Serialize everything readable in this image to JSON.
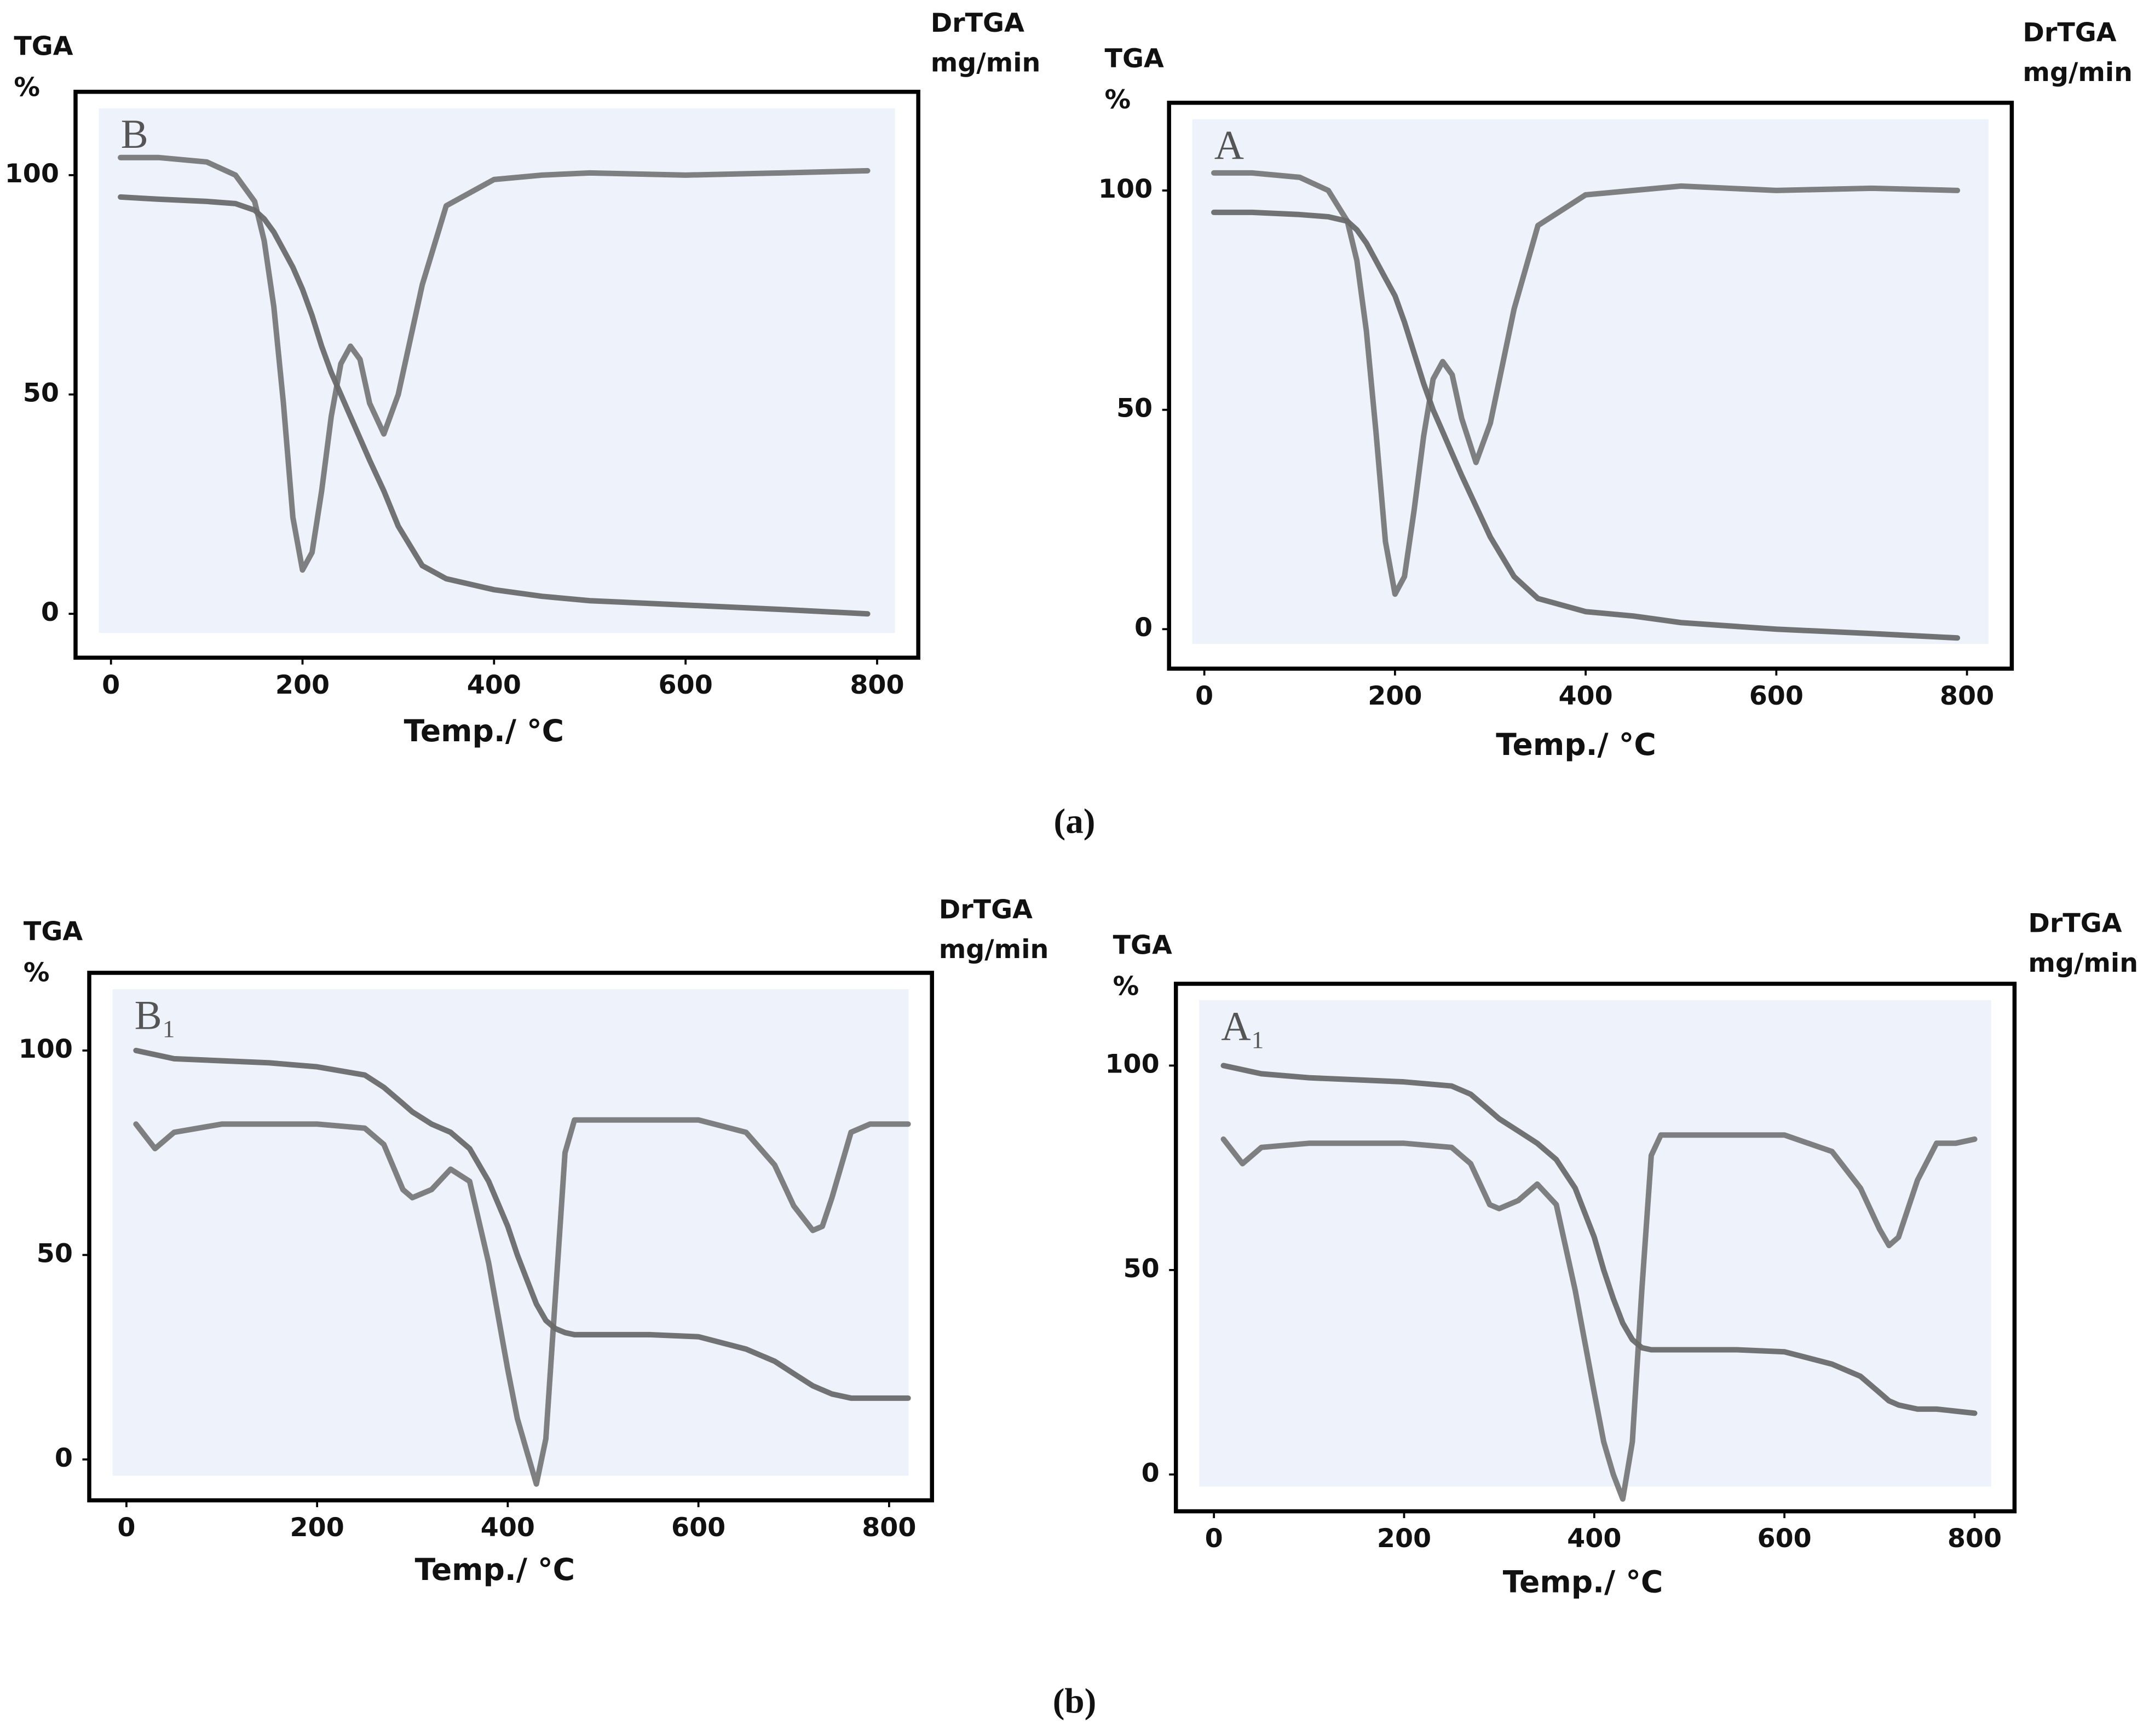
{
  "captions": [
    "(a)",
    "(b)"
  ],
  "chart_data": [
    {
      "type": "line",
      "panel_label": "B",
      "ylabel": [
        "TGA",
        "%"
      ],
      "y2label": [
        "DrTGA",
        "mg/min"
      ],
      "xlabel": "Temp./ °C",
      "xlim": [
        -37,
        843
      ],
      "ylim": [
        -10,
        119
      ],
      "xticks": [
        0,
        200,
        400,
        600,
        800
      ],
      "yticks": [
        0,
        50,
        100
      ],
      "grid": false,
      "x": [
        10,
        50,
        100,
        130,
        150,
        160,
        170,
        180,
        190,
        200,
        210,
        220,
        230,
        240,
        250,
        260,
        270,
        285,
        300,
        325,
        350,
        400,
        450,
        500,
        600,
        700,
        790
      ],
      "series": [
        {
          "color": "#5a5a5a",
          "values": [
            95,
            94.5,
            94,
            93.5,
            92,
            90,
            87,
            83,
            79,
            74,
            68,
            61,
            55,
            50,
            45,
            40,
            35,
            28,
            20,
            11,
            8,
            5.5,
            4,
            3,
            2,
            1,
            0
          ]
        },
        {
          "color": "#6a6a6a",
          "values": [
            104,
            104,
            103,
            100,
            94,
            85,
            70,
            48,
            22,
            10,
            14,
            28,
            45,
            57,
            61,
            58,
            48,
            41,
            50,
            75,
            93,
            99,
            100,
            100.5,
            100,
            100.5,
            101
          ]
        }
      ]
    },
    {
      "type": "line",
      "panel_label": "A",
      "ylabel": [
        "TGA",
        "%"
      ],
      "y2label": [
        "DrTGA",
        "mg/min"
      ],
      "xlabel": "Temp./ °C",
      "xlim": [
        -37,
        847
      ],
      "ylim": [
        -9,
        120
      ],
      "xticks": [
        0,
        200,
        400,
        600,
        800
      ],
      "yticks": [
        0,
        50,
        100
      ],
      "grid": false,
      "x": [
        10,
        50,
        100,
        130,
        150,
        160,
        170,
        180,
        190,
        200,
        210,
        220,
        230,
        240,
        250,
        260,
        270,
        285,
        300,
        325,
        350,
        400,
        450,
        500,
        600,
        700,
        790
      ],
      "series": [
        {
          "color": "#5a5a5a",
          "values": [
            95,
            95,
            94.5,
            94,
            93,
            91,
            88,
            84,
            80,
            76,
            70,
            63,
            56,
            50,
            45,
            40,
            35,
            28,
            21,
            12,
            7,
            4,
            3,
            1.5,
            0,
            -1,
            -2
          ]
        },
        {
          "color": "#6a6a6a",
          "values": [
            104,
            104,
            103,
            100,
            93,
            84,
            68,
            45,
            20,
            8,
            12,
            27,
            44,
            57,
            61,
            58,
            48,
            38,
            47,
            73,
            92,
            99,
            100,
            101,
            100,
            100.5,
            100
          ]
        }
      ]
    },
    {
      "type": "line",
      "panel_label": "B₁",
      "ylabel": [
        "TGA",
        "%"
      ],
      "y2label": [
        "DrTGA",
        "mg/min"
      ],
      "xlabel": "Temp./ °C",
      "xlim": [
        -39,
        845
      ],
      "ylim": [
        -10,
        119
      ],
      "xticks": [
        0,
        200,
        400,
        600,
        800
      ],
      "yticks": [
        0,
        50,
        100
      ],
      "grid": false,
      "x": [
        10,
        30,
        50,
        100,
        150,
        200,
        250,
        270,
        290,
        300,
        320,
        340,
        360,
        380,
        400,
        410,
        420,
        430,
        440,
        450,
        460,
        470,
        500,
        550,
        600,
        650,
        680,
        700,
        720,
        730,
        740,
        760,
        780,
        820
      ],
      "series": [
        {
          "color": "#5a5a5a",
          "values": [
            100,
            99,
            98,
            97.5,
            97,
            96,
            94,
            91,
            87,
            85,
            82,
            80,
            76,
            68,
            57,
            50,
            44,
            38,
            34,
            32,
            31,
            30.5,
            30.5,
            30.5,
            30,
            27,
            24,
            21,
            18,
            17,
            16,
            15,
            15,
            15
          ]
        },
        {
          "color": "#6a6a6a",
          "values": [
            82,
            76,
            80,
            82,
            82,
            82,
            81,
            77,
            66,
            64,
            66,
            71,
            68,
            48,
            22,
            10,
            2,
            -6,
            5,
            40,
            75,
            83,
            83,
            83,
            83,
            80,
            72,
            62,
            56,
            57,
            64,
            80,
            82,
            82
          ]
        }
      ]
    },
    {
      "type": "line",
      "panel_label": "A₁",
      "ylabel": [
        "TGA",
        "%"
      ],
      "y2label": [
        "DrTGA",
        "mg/min"
      ],
      "xlabel": "Temp./ °C",
      "xlim": [
        -40,
        842
      ],
      "ylim": [
        -9,
        120
      ],
      "xticks": [
        0,
        200,
        400,
        600,
        800
      ],
      "yticks": [
        0,
        50,
        100
      ],
      "grid": false,
      "x": [
        10,
        30,
        50,
        100,
        150,
        200,
        250,
        270,
        290,
        300,
        320,
        340,
        360,
        380,
        400,
        410,
        420,
        430,
        440,
        450,
        460,
        470,
        500,
        550,
        600,
        650,
        680,
        700,
        710,
        720,
        740,
        760,
        780,
        800
      ],
      "series": [
        {
          "color": "#5a5a5a",
          "values": [
            100,
            99,
            98,
            97,
            96.5,
            96,
            95,
            93,
            89,
            87,
            84,
            81,
            77,
            70,
            58,
            50,
            43,
            37,
            33,
            31,
            30.5,
            30.5,
            30.5,
            30.5,
            30,
            27,
            24,
            20,
            18,
            17,
            16,
            16,
            15.5,
            15
          ]
        },
        {
          "color": "#6a6a6a",
          "values": [
            82,
            76,
            80,
            81,
            81,
            81,
            80,
            76,
            66,
            65,
            67,
            71,
            66,
            45,
            20,
            8,
            0,
            -6,
            8,
            45,
            78,
            83,
            83,
            83,
            83,
            79,
            70,
            60,
            56,
            58,
            72,
            81,
            81,
            82
          ]
        }
      ]
    }
  ]
}
